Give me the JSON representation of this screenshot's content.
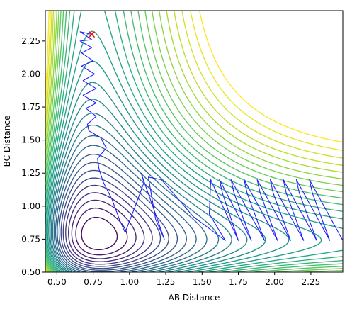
{
  "chart_data": {
    "type": "contour",
    "title": "",
    "xlabel": "AB Distance",
    "ylabel": "BC Distance",
    "xlim": [
      0.42,
      2.47
    ],
    "ylim": [
      0.5,
      2.48
    ],
    "xticks": [
      0.5,
      0.75,
      1.0,
      1.25,
      1.5,
      1.75,
      2.0,
      2.25
    ],
    "xtick_labels": [
      "0.50",
      "0.75",
      "1.00",
      "1.25",
      "1.50",
      "1.75",
      "2.00",
      "2.25"
    ],
    "yticks": [
      0.5,
      0.75,
      1.0,
      1.25,
      1.5,
      1.75,
      2.0,
      2.25
    ],
    "ytick_labels": [
      "0.50",
      "0.75",
      "1.00",
      "1.25",
      "1.50",
      "1.75",
      "2.00",
      "2.25"
    ],
    "grid": false,
    "colormap": "viridis",
    "contour_levels": 30,
    "surface": {
      "model": "LEPS-like",
      "well_depth": 1.0,
      "equilibrium_distance": 0.74,
      "width": 1.9
    },
    "trajectory_color": "#1f1fff",
    "trajectory": [
      [
        0.74,
        2.3
      ],
      [
        0.66,
        2.32
      ],
      [
        0.74,
        2.26
      ],
      [
        0.66,
        2.25
      ],
      [
        0.74,
        2.2
      ],
      [
        0.67,
        2.16
      ],
      [
        0.75,
        2.1
      ],
      [
        0.67,
        2.06
      ],
      [
        0.76,
        2.0
      ],
      [
        0.68,
        1.95
      ],
      [
        0.77,
        1.89
      ],
      [
        0.68,
        1.84
      ],
      [
        0.77,
        1.78
      ],
      [
        0.7,
        1.74
      ],
      [
        0.77,
        1.68
      ],
      [
        0.71,
        1.62
      ],
      [
        0.72,
        1.57
      ],
      [
        0.8,
        1.52
      ],
      [
        0.84,
        1.44
      ],
      [
        0.78,
        1.36
      ],
      [
        0.79,
        1.28
      ],
      [
        0.82,
        1.18
      ],
      [
        0.88,
        1.05
      ],
      [
        0.93,
        0.9
      ],
      [
        0.97,
        0.8
      ],
      [
        1.04,
        1.0
      ],
      [
        1.1,
        1.18
      ],
      [
        1.08,
        1.25
      ],
      [
        1.24,
        0.75
      ],
      [
        1.18,
        0.9
      ],
      [
        1.13,
        1.22
      ],
      [
        1.22,
        1.2
      ],
      [
        1.3,
        1.1
      ],
      [
        1.44,
        0.92
      ],
      [
        1.66,
        0.74
      ],
      [
        1.55,
        0.94
      ],
      [
        1.56,
        1.2
      ],
      [
        1.75,
        0.74
      ],
      [
        1.64,
        1.1
      ],
      [
        1.62,
        1.2
      ],
      [
        1.84,
        0.74
      ],
      [
        1.72,
        1.1
      ],
      [
        1.7,
        1.2
      ],
      [
        1.93,
        0.74
      ],
      [
        1.81,
        1.1
      ],
      [
        1.79,
        1.2
      ],
      [
        2.02,
        0.74
      ],
      [
        1.9,
        1.1
      ],
      [
        1.88,
        1.2
      ],
      [
        2.11,
        0.74
      ],
      [
        1.99,
        1.1
      ],
      [
        1.97,
        1.2
      ],
      [
        2.2,
        0.74
      ],
      [
        2.08,
        1.1
      ],
      [
        2.06,
        1.2
      ],
      [
        2.29,
        0.74
      ],
      [
        2.17,
        1.1
      ],
      [
        2.15,
        1.2
      ],
      [
        2.38,
        0.74
      ],
      [
        2.26,
        1.1
      ],
      [
        2.24,
        1.2
      ],
      [
        2.47,
        0.74
      ]
    ],
    "start_marker": {
      "x": 0.74,
      "y": 2.3,
      "symbol": "x",
      "color": "#ff0000"
    }
  }
}
